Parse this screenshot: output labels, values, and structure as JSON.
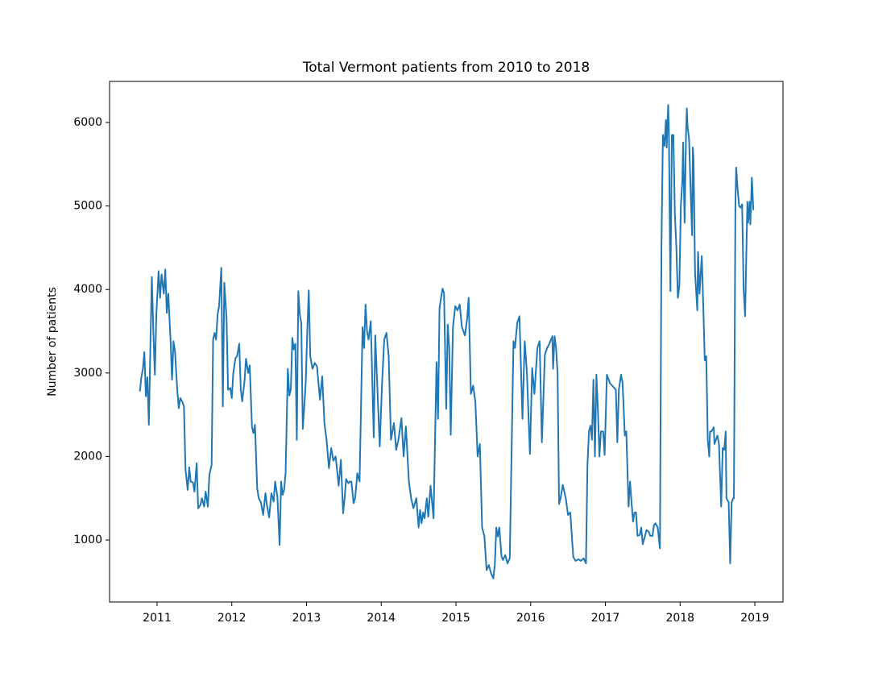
{
  "chart_data": {
    "type": "line",
    "title": "Total Vermont patients from 2010 to 2018",
    "ylabel": "Number of patients",
    "color": "#1f77b4",
    "grid": false,
    "xlim": [
      2010.364,
      2019.377
    ],
    "xticks": [
      2011,
      2012,
      2013,
      2014,
      2015,
      2016,
      2017,
      2018,
      2019
    ],
    "ylim": [
      257,
      6492
    ],
    "yticks": [
      1000,
      2000,
      3000,
      4000,
      5000,
      6000
    ],
    "x": [
      2010.77,
      2010.79,
      2010.81,
      2010.83,
      2010.85,
      2010.87,
      2010.89,
      2010.91,
      2010.93,
      2010.95,
      2010.97,
      2010.99,
      2011.02,
      2011.04,
      2011.06,
      2011.09,
      2011.11,
      2011.13,
      2011.15,
      2011.18,
      2011.2,
      2011.22,
      2011.24,
      2011.27,
      2011.29,
      2011.31,
      2011.34,
      2011.36,
      2011.38,
      2011.41,
      2011.43,
      2011.45,
      2011.48,
      2011.5,
      2011.53,
      2011.55,
      2011.58,
      2011.6,
      2011.63,
      2011.65,
      2011.68,
      2011.7,
      2011.73,
      2011.75,
      2011.77,
      2011.79,
      2011.81,
      2011.83,
      2011.86,
      2011.88,
      2011.9,
      2011.93,
      2011.95,
      2011.98,
      2012.0,
      2012.02,
      2012.05,
      2012.07,
      2012.1,
      2012.12,
      2012.14,
      2012.17,
      2012.19,
      2012.22,
      2012.24,
      2012.27,
      2012.29,
      2012.31,
      2012.34,
      2012.36,
      2012.39,
      2012.42,
      2012.45,
      2012.47,
      2012.5,
      2012.53,
      2012.56,
      2012.58,
      2012.61,
      2012.64,
      2012.66,
      2012.68,
      2012.7,
      2012.72,
      2012.75,
      2012.77,
      2012.79,
      2012.81,
      2012.83,
      2012.85,
      2012.87,
      2012.89,
      2012.91,
      2012.93,
      2012.95,
      2012.97,
      2012.99,
      2013.01,
      2013.03,
      2013.05,
      2013.08,
      2013.11,
      2013.14,
      2013.18,
      2013.21,
      2013.24,
      2013.27,
      2013.3,
      2013.33,
      2013.36,
      2013.39,
      2013.43,
      2013.46,
      2013.49,
      2013.51,
      2013.53,
      2013.56,
      2013.58,
      2013.6,
      2013.63,
      2013.65,
      2013.68,
      2013.71,
      2013.75,
      2013.77,
      2013.79,
      2013.81,
      2013.83,
      2013.86,
      2013.9,
      2013.92,
      2013.98,
      2014.01,
      2014.04,
      2014.07,
      2014.1,
      2014.13,
      2014.17,
      2014.2,
      2014.23,
      2014.27,
      2014.3,
      2014.33,
      2014.37,
      2014.4,
      2014.43,
      2014.47,
      2014.5,
      2014.52,
      2014.54,
      2014.56,
      2014.58,
      2014.61,
      2014.63,
      2014.66,
      2014.7,
      2014.74,
      2014.76,
      2014.78,
      2014.82,
      2014.84,
      2014.87,
      2014.89,
      2014.91,
      2014.93,
      2014.96,
      2014.99,
      2015.02,
      2015.05,
      2015.08,
      2015.12,
      2015.15,
      2015.17,
      2015.2,
      2015.23,
      2015.26,
      2015.29,
      2015.32,
      2015.35,
      2015.38,
      2015.41,
      2015.44,
      2015.47,
      2015.5,
      2015.52,
      2015.54,
      2015.56,
      2015.58,
      2015.61,
      2015.63,
      2015.66,
      2015.69,
      2015.72,
      2015.77,
      2015.79,
      2015.82,
      2015.85,
      2015.89,
      2015.92,
      2015.95,
      2015.99,
      2016.02,
      2016.05,
      2016.09,
      2016.12,
      2016.15,
      2016.19,
      2016.22,
      2016.25,
      2016.29,
      2016.3,
      2016.32,
      2016.34,
      2016.36,
      2016.38,
      2016.4,
      2016.43,
      2016.47,
      2016.5,
      2016.53,
      2016.57,
      2016.6,
      2016.64,
      2016.67,
      2016.71,
      2016.74,
      2016.76,
      2016.78,
      2016.8,
      2016.82,
      2016.84,
      2016.86,
      2016.88,
      2016.9,
      2016.92,
      2016.94,
      2016.97,
      2016.99,
      2017.02,
      2017.06,
      2017.1,
      2017.14,
      2017.16,
      2017.18,
      2017.21,
      2017.23,
      2017.26,
      2017.28,
      2017.31,
      2017.33,
      2017.35,
      2017.37,
      2017.39,
      2017.41,
      2017.43,
      2017.46,
      2017.48,
      2017.5,
      2017.53,
      2017.55,
      2017.58,
      2017.6,
      2017.63,
      2017.65,
      2017.67,
      2017.7,
      2017.73,
      2017.75,
      2017.77,
      2017.79,
      2017.81,
      2017.82,
      2017.84,
      2017.85,
      2017.87,
      2017.89,
      2017.91,
      2017.93,
      2017.95,
      2017.97,
      2017.99,
      2018.01,
      2018.03,
      2018.04,
      2018.06,
      2018.08,
      2018.09,
      2018.1,
      2018.12,
      2018.14,
      2018.16,
      2018.17,
      2018.18,
      2018.2,
      2018.23,
      2018.24,
      2018.26,
      2018.29,
      2018.31,
      2018.33,
      2018.35,
      2018.37,
      2018.39,
      2018.4,
      2018.42,
      2018.45,
      2018.46,
      2018.48,
      2018.5,
      2018.52,
      2018.55,
      2018.57,
      2018.59,
      2018.61,
      2018.62,
      2018.65,
      2018.67,
      2018.69,
      2018.71,
      2018.72,
      2018.74,
      2018.75,
      2018.77,
      2018.79,
      2018.81,
      2018.83,
      2018.85,
      2018.87,
      2018.9,
      2018.91,
      2018.93,
      2018.94,
      2018.96,
      2018.98
    ],
    "values": [
      2780,
      2950,
      3050,
      3250,
      2720,
      2950,
      2380,
      3300,
      4150,
      3500,
      2980,
      3700,
      4220,
      3900,
      4180,
      3950,
      4240,
      3720,
      3950,
      3400,
      2920,
      3380,
      3260,
      2800,
      2580,
      2700,
      2650,
      2600,
      1850,
      1600,
      1870,
      1700,
      1690,
      1580,
      1920,
      1380,
      1420,
      1500,
      1400,
      1580,
      1400,
      1780,
      1900,
      3400,
      3480,
      3400,
      3700,
      3800,
      4260,
      2600,
      4080,
      3650,
      2800,
      2820,
      2700,
      3000,
      3180,
      3200,
      3350,
      2800,
      2660,
      2900,
      3170,
      3000,
      3090,
      2350,
      2280,
      2380,
      1620,
      1500,
      1450,
      1300,
      1560,
      1420,
      1270,
      1560,
      1460,
      1700,
      1520,
      940,
      1700,
      1540,
      1600,
      1800,
      3050,
      2730,
      2800,
      3420,
      3280,
      3350,
      2200,
      3980,
      3700,
      3600,
      2330,
      2600,
      2900,
      3500,
      3990,
      3200,
      3050,
      3120,
      3080,
      2680,
      2960,
      2400,
      2180,
      1860,
      2100,
      1950,
      2000,
      1650,
      1960,
      1320,
      1500,
      1730,
      1680,
      1700,
      1700,
      1440,
      1500,
      1800,
      1700,
      3550,
      3300,
      3820,
      3500,
      3400,
      3620,
      2230,
      3450,
      2120,
      2850,
      3400,
      3480,
      3200,
      2200,
      2400,
      2080,
      2200,
      2460,
      2000,
      2360,
      1700,
      1500,
      1380,
      1500,
      1150,
      1360,
      1200,
      1330,
      1260,
      1500,
      1280,
      1650,
      1260,
      3130,
      2450,
      3780,
      4010,
      3960,
      2570,
      3580,
      3300,
      2260,
      3550,
      3800,
      3750,
      3820,
      3550,
      3450,
      3650,
      3900,
      2750,
      2850,
      2650,
      2000,
      2150,
      1150,
      1050,
      640,
      700,
      600,
      540,
      700,
      1150,
      1040,
      1150,
      800,
      760,
      820,
      720,
      780,
      3380,
      3300,
      3600,
      3680,
      2450,
      3380,
      3000,
      2030,
      3060,
      2750,
      3300,
      3380,
      2170,
      3220,
      3300,
      3350,
      3440,
      3050,
      3440,
      3300,
      3000,
      1430,
      1500,
      1660,
      1500,
      1300,
      1330,
      800,
      750,
      770,
      750,
      780,
      720,
      1900,
      2300,
      2370,
      2200,
      2920,
      2000,
      2980,
      2550,
      2000,
      2300,
      2300,
      2020,
      2980,
      2880,
      2840,
      2800,
      2170,
      2800,
      2980,
      2880,
      2250,
      2300,
      1400,
      1700,
      1450,
      1220,
      1330,
      1330,
      1050,
      1060,
      1150,
      950,
      1050,
      1120,
      1100,
      1050,
      1050,
      1180,
      1200,
      1150,
      900,
      4500,
      5850,
      5720,
      6030,
      5700,
      6210,
      5900,
      3980,
      5850,
      5850,
      4900,
      4500,
      3900,
      4050,
      5000,
      5300,
      5760,
      4800,
      5900,
      6170,
      5950,
      5800,
      5200,
      4650,
      5700,
      5550,
      4200,
      3750,
      4450,
      3950,
      4400,
      3800,
      3150,
      3200,
      2200,
      2000,
      2300,
      2300,
      2350,
      2150,
      2200,
      2250,
      2150,
      1400,
      2100,
      2080,
      2300,
      1500,
      1450,
      720,
      1450,
      1500,
      1500,
      5000,
      5460,
      5200,
      5000,
      4980,
      5020,
      4000,
      3680,
      5050,
      4800,
      5050,
      4780,
      5340,
      4950
    ]
  }
}
